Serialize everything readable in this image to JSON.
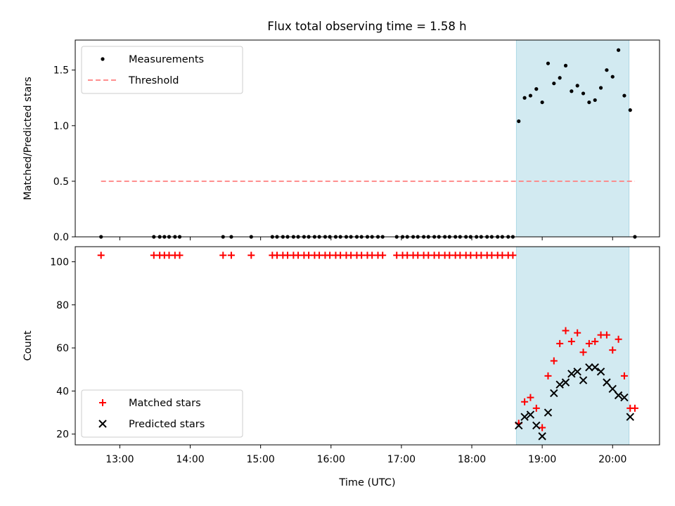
{
  "title": "Flux total observing time = 1.58 h",
  "colors": {
    "shade": "#add8e6",
    "threshold": "#ff7f7f",
    "measurement": "#000000",
    "matched": "#ff0000",
    "predicted": "#000000"
  },
  "chart_data": [
    {
      "type": "scatter",
      "title": "Flux total observing time = 1.58 h",
      "xlabel": "",
      "ylabel": "Matched/Predicted stars",
      "xlim": [
        "12:22",
        "20:40"
      ],
      "ylim": [
        0,
        1.77
      ],
      "yticks": [
        0.0,
        0.5,
        1.0,
        1.5
      ],
      "ytick_labels": [
        "0.0",
        "0.5",
        "1.0",
        "1.5"
      ],
      "xticks": [
        "13:00",
        "14:00",
        "15:00",
        "16:00",
        "17:00",
        "18:00",
        "19:00",
        "20:00"
      ],
      "shaded_region": [
        "18:38",
        "20:14"
      ],
      "legend": {
        "placement": "upper-left",
        "entries": [
          "Measurements",
          "Threshold"
        ]
      },
      "series": [
        {
          "name": "Threshold",
          "kind": "dashed-line",
          "x": [
            "12:44",
            "20:19"
          ],
          "values": [
            0.5,
            0.5
          ]
        },
        {
          "name": "Measurements",
          "kind": "points",
          "x": [
            "12:44",
            "13:29",
            "13:34",
            "13:38",
            "13:42",
            "13:47",
            "13:51",
            "14:28",
            "14:35",
            "14:52",
            "15:10",
            "15:14",
            "15:19",
            "15:23",
            "15:28",
            "15:32",
            "15:37",
            "15:41",
            "15:46",
            "15:50",
            "15:55",
            "15:59",
            "16:04",
            "16:08",
            "16:13",
            "16:17",
            "16:22",
            "16:26",
            "16:31",
            "16:35",
            "16:40",
            "16:44",
            "16:56",
            "17:01",
            "17:05",
            "17:10",
            "17:14",
            "17:19",
            "17:23",
            "17:28",
            "17:32",
            "17:37",
            "17:41",
            "17:46",
            "17:50",
            "17:55",
            "17:59",
            "18:04",
            "18:08",
            "18:13",
            "18:17",
            "18:22",
            "18:26",
            "18:31",
            "18:35",
            "18:40",
            "18:45",
            "18:50",
            "18:55",
            "19:00",
            "19:05",
            "19:10",
            "19:15",
            "19:20",
            "19:25",
            "19:30",
            "19:35",
            "19:40",
            "19:45",
            "19:50",
            "19:55",
            "20:00",
            "20:05",
            "20:10",
            "20:15",
            "20:19"
          ],
          "values": [
            0,
            0,
            0,
            0,
            0,
            0,
            0,
            0,
            0,
            0,
            0,
            0,
            0,
            0,
            0,
            0,
            0,
            0,
            0,
            0,
            0,
            0,
            0,
            0,
            0,
            0,
            0,
            0,
            0,
            0,
            0,
            0,
            0,
            0,
            0,
            0,
            0,
            0,
            0,
            0,
            0,
            0,
            0,
            0,
            0,
            0,
            0,
            0,
            0,
            0,
            0,
            0,
            0,
            0,
            0,
            1.04,
            1.25,
            1.27,
            1.33,
            1.21,
            1.56,
            1.38,
            1.43,
            1.54,
            1.31,
            1.36,
            1.29,
            1.21,
            1.23,
            1.34,
            1.5,
            1.44,
            1.68,
            1.27,
            1.14,
            0
          ]
        }
      ]
    },
    {
      "type": "scatter",
      "xlabel": "Time (UTC)",
      "ylabel": "Count",
      "xlim": [
        "12:22",
        "20:40"
      ],
      "ylim": [
        15,
        107
      ],
      "yticks": [
        20,
        40,
        60,
        80,
        100
      ],
      "ytick_labels": [
        "20",
        "40",
        "60",
        "80",
        "100"
      ],
      "xticks": [
        "13:00",
        "14:00",
        "15:00",
        "16:00",
        "17:00",
        "18:00",
        "19:00",
        "20:00"
      ],
      "shaded_region": [
        "18:38",
        "20:14"
      ],
      "legend": {
        "placement": "lower-left",
        "entries": [
          "Matched stars",
          "Predicted stars"
        ]
      },
      "series": [
        {
          "name": "Matched stars",
          "kind": "plus",
          "x": [
            "12:44",
            "13:29",
            "13:34",
            "13:38",
            "13:42",
            "13:47",
            "13:51",
            "14:28",
            "14:35",
            "14:52",
            "15:10",
            "15:14",
            "15:19",
            "15:23",
            "15:28",
            "15:32",
            "15:37",
            "15:41",
            "15:46",
            "15:50",
            "15:55",
            "15:59",
            "16:04",
            "16:08",
            "16:13",
            "16:17",
            "16:22",
            "16:26",
            "16:31",
            "16:35",
            "16:40",
            "16:44",
            "16:56",
            "17:01",
            "17:05",
            "17:10",
            "17:14",
            "17:19",
            "17:23",
            "17:28",
            "17:32",
            "17:37",
            "17:41",
            "17:46",
            "17:50",
            "17:55",
            "17:59",
            "18:04",
            "18:08",
            "18:13",
            "18:17",
            "18:22",
            "18:26",
            "18:31",
            "18:35",
            "18:40",
            "18:45",
            "18:50",
            "18:55",
            "19:00",
            "19:05",
            "19:10",
            "19:15",
            "19:20",
            "19:25",
            "19:30",
            "19:35",
            "19:40",
            "19:45",
            "19:50",
            "19:55",
            "20:00",
            "20:05",
            "20:10",
            "20:15",
            "20:19"
          ],
          "values": [
            103,
            103,
            103,
            103,
            103,
            103,
            103,
            103,
            103,
            103,
            103,
            103,
            103,
            103,
            103,
            103,
            103,
            103,
            103,
            103,
            103,
            103,
            103,
            103,
            103,
            103,
            103,
            103,
            103,
            103,
            103,
            103,
            103,
            103,
            103,
            103,
            103,
            103,
            103,
            103,
            103,
            103,
            103,
            103,
            103,
            103,
            103,
            103,
            103,
            103,
            103,
            103,
            103,
            103,
            103,
            25,
            35,
            37,
            32,
            23,
            47,
            54,
            62,
            68,
            63,
            67,
            58,
            62,
            63,
            66,
            66,
            59,
            64,
            47,
            32,
            32
          ]
        },
        {
          "name": "Predicted stars",
          "kind": "x",
          "x": [
            "18:40",
            "18:45",
            "18:50",
            "18:55",
            "19:00",
            "19:05",
            "19:10",
            "19:15",
            "19:20",
            "19:25",
            "19:30",
            "19:35",
            "19:40",
            "19:45",
            "19:50",
            "19:55",
            "20:00",
            "20:05",
            "20:10",
            "20:15"
          ],
          "values": [
            24,
            28,
            29,
            24,
            19,
            30,
            39,
            43,
            44,
            48,
            49,
            45,
            51,
            51,
            49,
            44,
            41,
            38,
            37,
            28
          ]
        }
      ]
    }
  ]
}
